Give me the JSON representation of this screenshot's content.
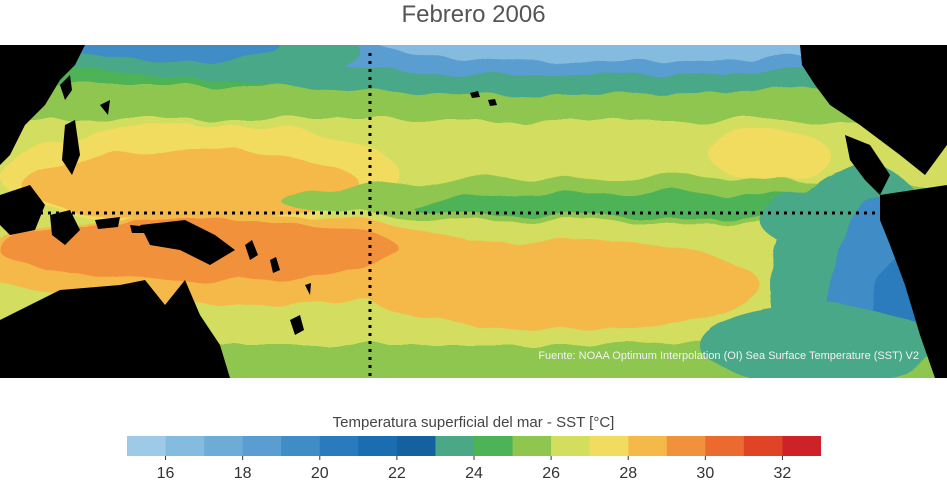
{
  "title": "Febrero 2006",
  "source": "Fuente: NOAA Optimum Interpolation (OI) Sea Surface Temperature (SST) V2",
  "colorbar": {
    "label": "Temperatura superficial del mar - SST  [°C]",
    "min": 15,
    "max": 33,
    "ticks": [
      "16",
      "18",
      "20",
      "22",
      "24",
      "26",
      "28",
      "30",
      "32"
    ],
    "colors": [
      "#9ecae8",
      "#86bbe0",
      "#6eacd8",
      "#5a9dd0",
      "#3f8cc6",
      "#2a7bbd",
      "#1a6db0",
      "#15609f",
      "#4aa887",
      "#4db357",
      "#8ec64f",
      "#d3dd5e",
      "#f2dc60",
      "#f5b949",
      "#f2913b",
      "#ea6a2f",
      "#e04427",
      "#cc2228"
    ]
  },
  "colors": {
    "land": "#000000",
    "reference_lines": "#000000"
  }
}
